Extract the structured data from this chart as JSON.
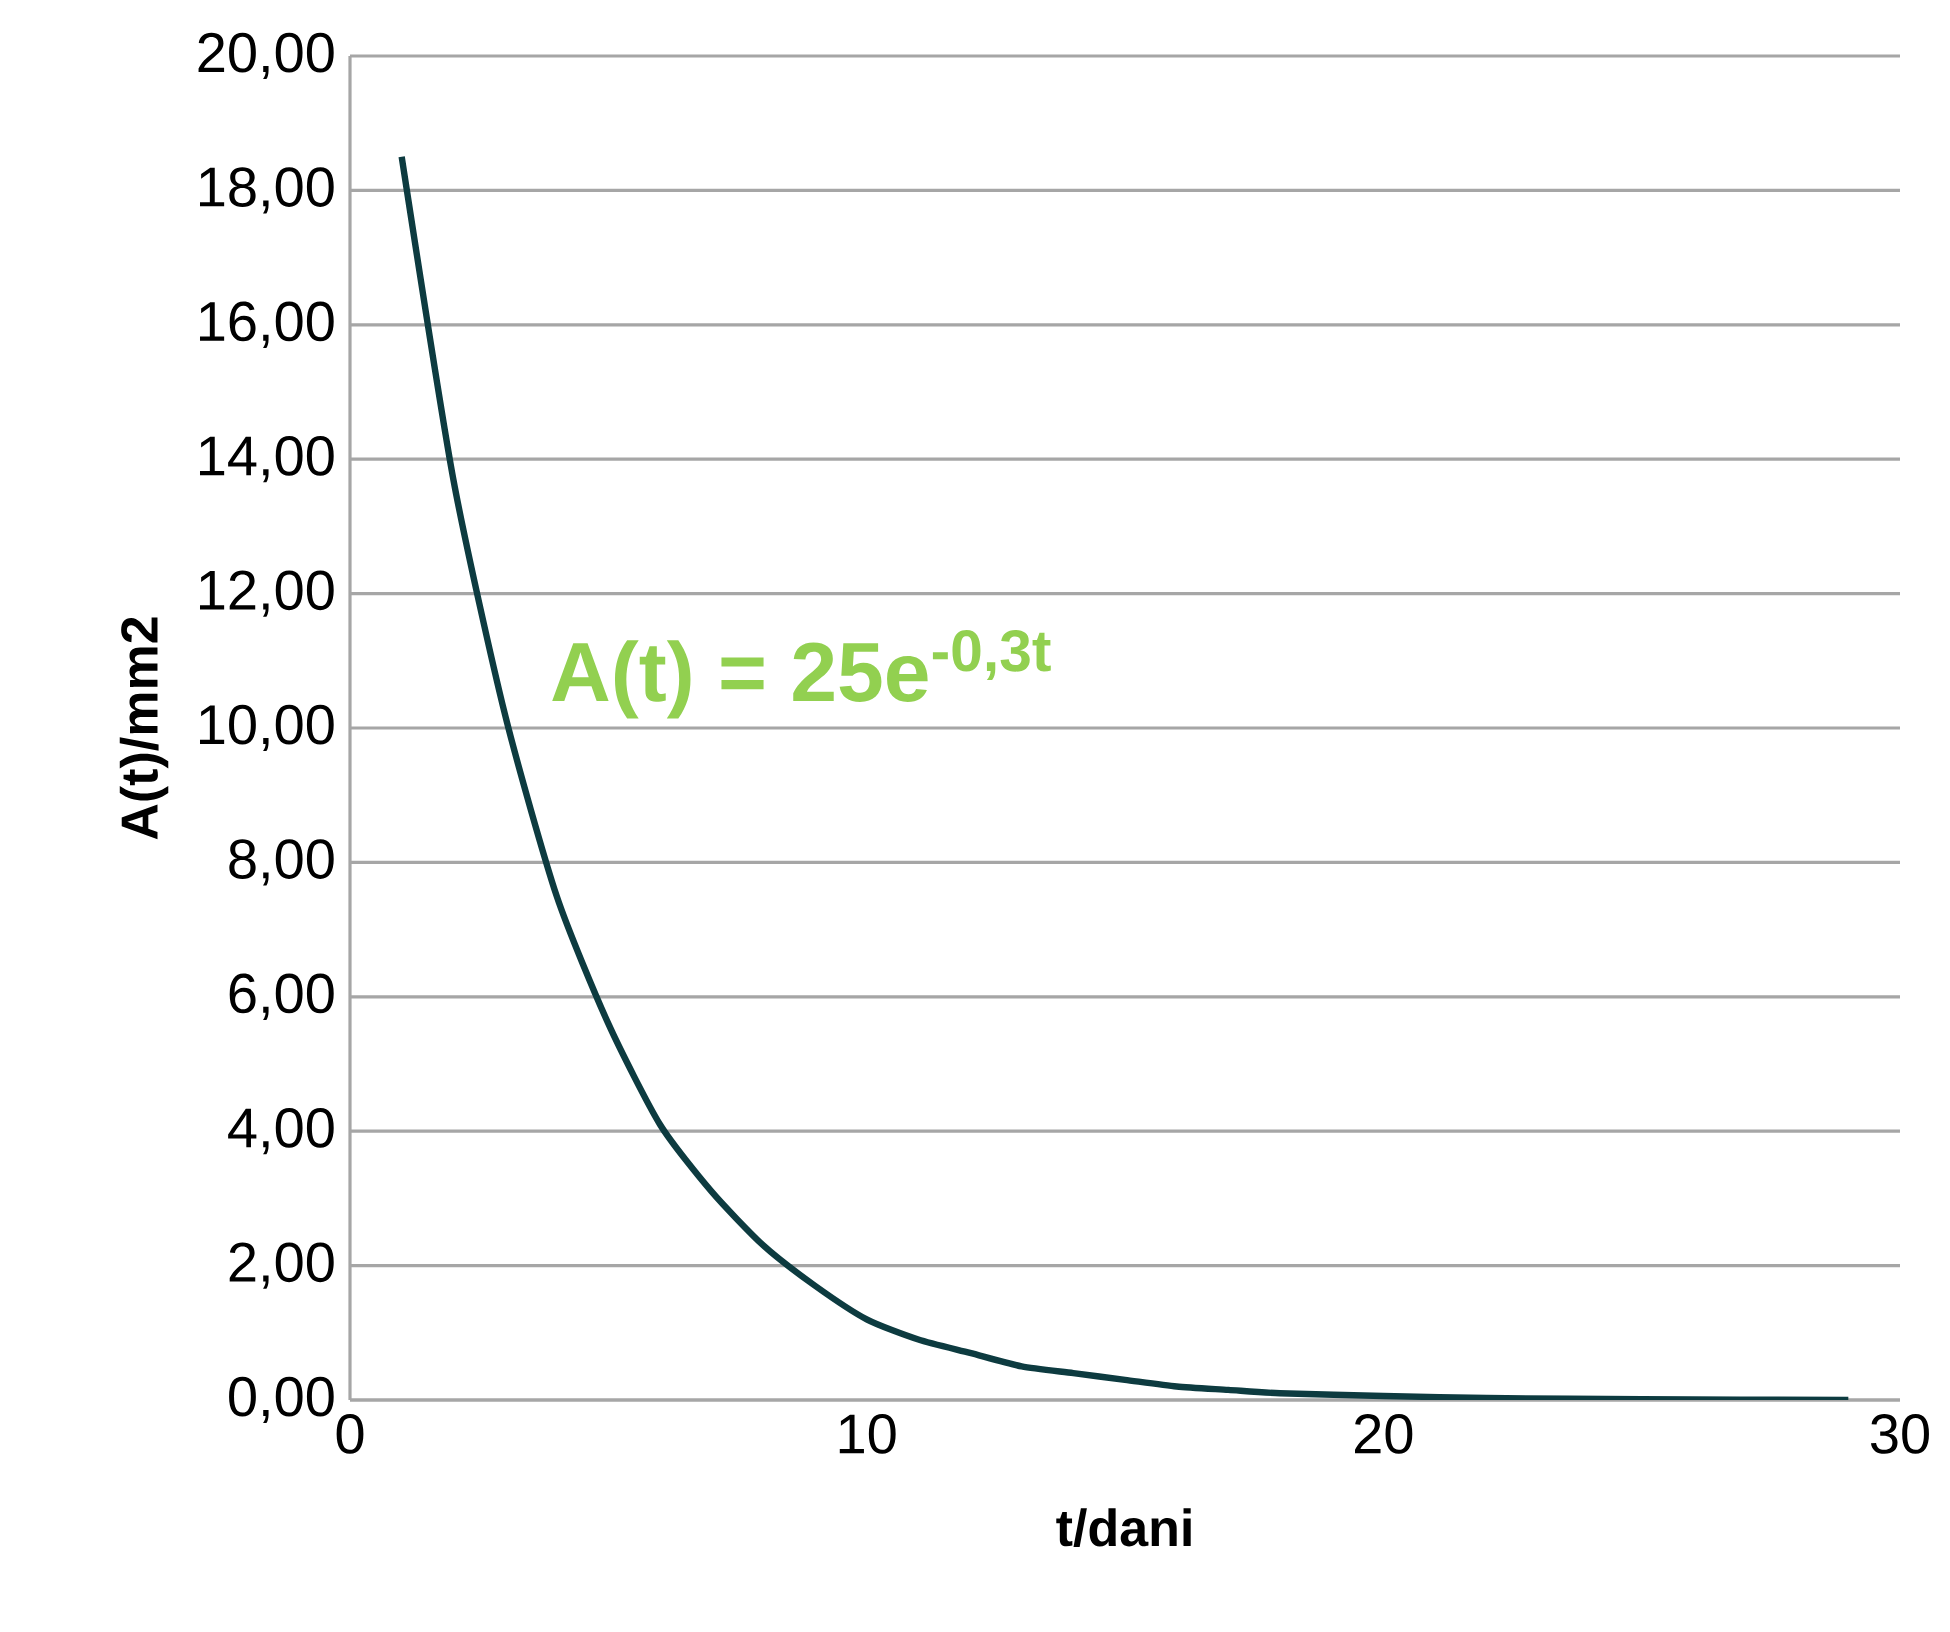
{
  "chart_data": {
    "type": "line",
    "xlabel": "t/dani",
    "ylabel": "A(t)/mm2",
    "annotations": [
      "A(t) = 25e$^{-0,3t}$"
    ],
    "series": [
      {
        "color": "#0d3b40",
        "x": [
          1,
          2,
          3,
          4,
          5,
          6,
          7,
          8,
          9,
          10,
          11,
          12,
          13,
          14,
          15,
          16,
          17,
          18,
          20,
          22,
          25,
          29
        ],
        "values": [
          18.5,
          13.7,
          10.2,
          7.5,
          5.6,
          4.1,
          3.1,
          2.3,
          1.7,
          1.2,
          0.9,
          0.7,
          0.5,
          0.4,
          0.3,
          0.2,
          0.15,
          0.1,
          0.06,
          0.03,
          0.01,
          0.0
        ]
      }
    ],
    "xlim": [
      0,
      30
    ],
    "xticks": [
      0,
      10,
      20,
      30
    ],
    "ylim": [
      0,
      20
    ],
    "yticks": [
      {
        "value": 0,
        "label": "0,00"
      },
      {
        "value": 2,
        "label": "2,00"
      },
      {
        "value": 4,
        "label": "4,00"
      },
      {
        "value": 6,
        "label": "6,00"
      },
      {
        "value": 8,
        "label": "8,00"
      },
      {
        "value": 10,
        "label": "10,00"
      },
      {
        "value": 12,
        "label": "12,00"
      },
      {
        "value": 14,
        "label": "14,00"
      },
      {
        "value": 16,
        "label": "16,00"
      },
      {
        "value": 18,
        "label": "18,00"
      },
      {
        "value": 20,
        "label": "20,00"
      }
    ],
    "grid": "y",
    "marker": "none",
    "line_style": "solid"
  }
}
